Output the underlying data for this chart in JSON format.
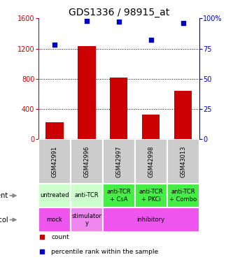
{
  "title": "GDS1336 / 98915_at",
  "samples": [
    "GSM42991",
    "GSM42996",
    "GSM42997",
    "GSM42998",
    "GSM43013"
  ],
  "counts": [
    220,
    1230,
    820,
    330,
    640
  ],
  "percentile_ranks": [
    78,
    98,
    97,
    82,
    96
  ],
  "ylim_count": [
    0,
    1600
  ],
  "ylim_pct": [
    0,
    100
  ],
  "yticks_count": [
    0,
    400,
    800,
    1200,
    1600
  ],
  "yticks_pct": [
    0,
    25,
    50,
    75,
    100
  ],
  "bar_color": "#cc0000",
  "dot_color": "#0000cc",
  "agent_spans": [
    [
      0,
      1,
      "untreated",
      "#ccffcc"
    ],
    [
      1,
      2,
      "anti-TCR",
      "#ccffcc"
    ],
    [
      2,
      3,
      "anti-TCR\n+ CsA",
      "#44ee44"
    ],
    [
      3,
      4,
      "anti-TCR\n+ PKCi",
      "#44ee44"
    ],
    [
      4,
      5,
      "anti-TCR\n+ Combo",
      "#44ee44"
    ]
  ],
  "protocol_spans": [
    [
      0,
      1,
      "mock",
      "#ee55ee"
    ],
    [
      1,
      2,
      "stimulator\ny",
      "#ee88ee"
    ],
    [
      2,
      5,
      "inhibitory",
      "#ee55ee"
    ]
  ],
  "sample_bg_color": "#cccccc",
  "legend_count_color": "#cc0000",
  "legend_pct_color": "#0000cc",
  "title_fontsize": 10,
  "tick_fontsize": 7,
  "label_fontsize": 7,
  "cell_fontsize": 6,
  "sample_fontsize": 6
}
